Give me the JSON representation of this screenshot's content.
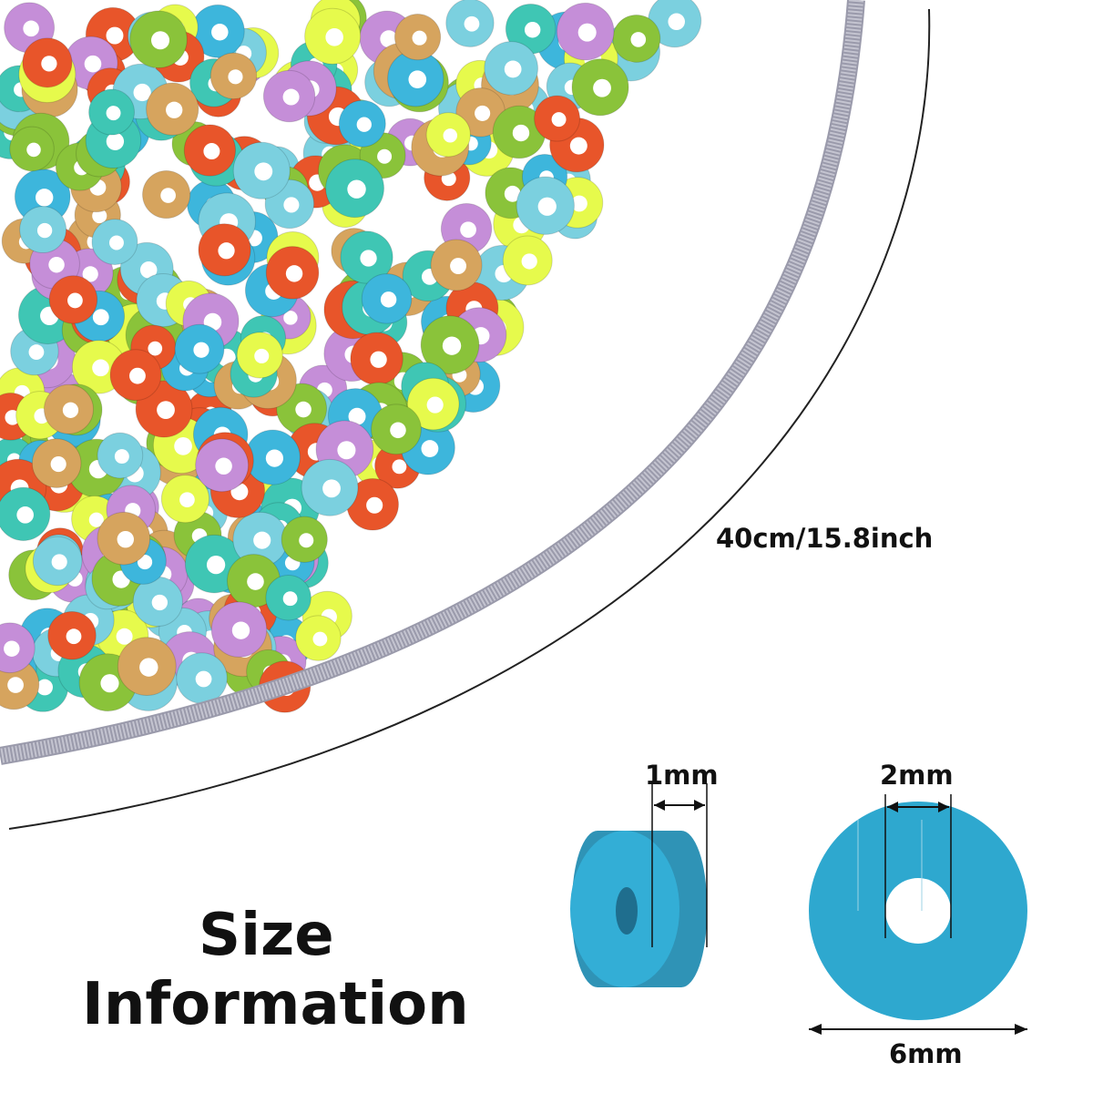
{
  "title": {
    "line1": "Size",
    "line2": "Information"
  },
  "dimensions": {
    "strand_length": "40cm/15.8inch",
    "thickness": "1mm",
    "hole_diameter": "2mm",
    "outer_diameter": "6mm"
  },
  "colors": {
    "sample_bead": "#2ea8cf",
    "strand": "#b4b4c2",
    "bead_palette": [
      "#8ac33a",
      "#7bd0df",
      "#e8552a",
      "#c58ed8",
      "#d6a45e",
      "#e6fa4c",
      "#3fc6b4",
      "#3db6dc"
    ]
  },
  "icons": [
    "bead-pile-image",
    "bead-strand-image",
    "bead-side-view-icon",
    "bead-front-view-icon",
    "dimension-arrow-icon"
  ]
}
